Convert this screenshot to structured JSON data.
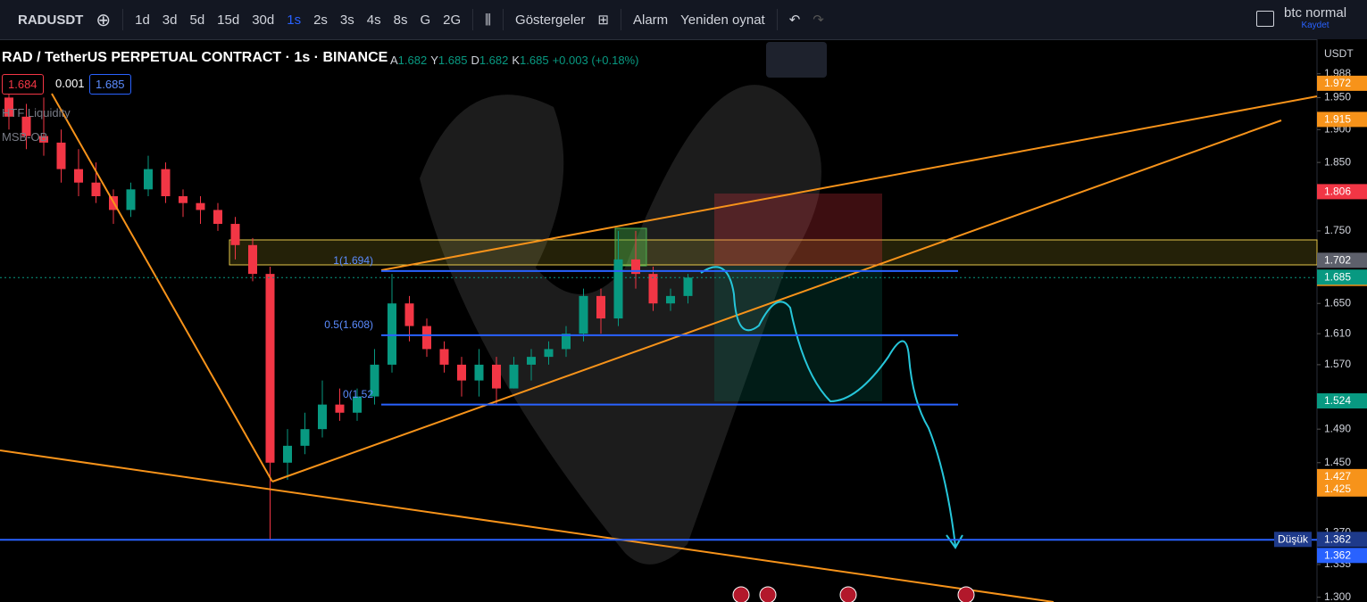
{
  "toolbar": {
    "symbol": "RADUSDT",
    "intervals": [
      "1d",
      "3d",
      "5d",
      "15d",
      "30d",
      "1s",
      "2s",
      "3s",
      "4s",
      "8s",
      "G",
      "2G"
    ],
    "indicators": "Göstergeler",
    "alarm": "Alarm",
    "replay": "Yeniden oynat",
    "layout_name": "btc normal",
    "save": "Kaydet"
  },
  "legend": {
    "title": "RAD / TetherUS PERPETUAL CONTRACT · 1s · BINANCE",
    "ohlc": [
      {
        "key": "A",
        "value": "1.682"
      },
      {
        "key": "Y",
        "value": "1.685"
      },
      {
        "key": "D",
        "value": "1.682"
      },
      {
        "key": "K",
        "value": "1.685"
      }
    ],
    "change": "+0.003 (+0.18%)",
    "bid": "1.684",
    "spread": "0.001",
    "ask": "1.685",
    "indicators": [
      "HTF Liquidity",
      "MSB-OB"
    ]
  },
  "chart": {
    "currency": "USDT",
    "log_scale": true,
    "ylim": [
      1.295,
      2.043
    ],
    "price_ticks": [
      {
        "value": 1.988,
        "label": "1.988"
      },
      {
        "value": 1.95,
        "label": "1.950"
      },
      {
        "value": 1.9,
        "label": "1.900"
      },
      {
        "value": 1.85,
        "label": "1.850"
      },
      {
        "value": 1.75,
        "label": "1.750"
      },
      {
        "value": 1.65,
        "label": "1.650"
      },
      {
        "value": 1.61,
        "label": "1.610"
      },
      {
        "value": 1.57,
        "label": "1.570"
      },
      {
        "value": 1.49,
        "label": "1.490"
      },
      {
        "value": 1.45,
        "label": "1.450"
      },
      {
        "value": 1.37,
        "label": "1.370"
      },
      {
        "value": 1.335,
        "label": "1.335"
      },
      {
        "value": 1.3,
        "label": "1.300"
      }
    ],
    "price_markers": [
      {
        "price": 1.972,
        "color": "#f7931a"
      },
      {
        "price": 1.915,
        "color": "#f7931a"
      },
      {
        "price": 1.806,
        "color": "#f23645"
      },
      {
        "price": 1.702,
        "color": "#5d606b"
      },
      {
        "price": 1.693,
        "color": "#f7931a"
      },
      {
        "price": 1.685,
        "color": "#089981"
      },
      {
        "price": 1.524,
        "color": "#089981"
      },
      {
        "price": 1.427,
        "color": "#f7931a"
      },
      {
        "price": 1.425,
        "color": "#f7931a"
      },
      {
        "price": 1.362,
        "color": "#1e3a8a"
      },
      {
        "price": 1.362,
        "color": "#2962ff"
      }
    ],
    "low_tag": "Düşük",
    "fib_levels": [
      {
        "value": 1.694,
        "label": "1(1.694)"
      },
      {
        "value": 1.608,
        "label": "0.5(1.608)"
      },
      {
        "value": 1.52,
        "label": "0(1.52"
      }
    ],
    "candles": [
      [
        1.95,
        1.97,
        1.9,
        1.92
      ],
      [
        1.92,
        1.94,
        1.87,
        1.89
      ],
      [
        1.89,
        1.95,
        1.86,
        1.88
      ],
      [
        1.88,
        1.9,
        1.82,
        1.84
      ],
      [
        1.84,
        1.87,
        1.8,
        1.82
      ],
      [
        1.82,
        1.85,
        1.79,
        1.8
      ],
      [
        1.8,
        1.81,
        1.76,
        1.78
      ],
      [
        1.78,
        1.82,
        1.77,
        1.81
      ],
      [
        1.81,
        1.86,
        1.8,
        1.84
      ],
      [
        1.84,
        1.85,
        1.79,
        1.8
      ],
      [
        1.8,
        1.81,
        1.77,
        1.79
      ],
      [
        1.79,
        1.8,
        1.76,
        1.78
      ],
      [
        1.78,
        1.79,
        1.75,
        1.76
      ],
      [
        1.76,
        1.77,
        1.71,
        1.73
      ],
      [
        1.73,
        1.74,
        1.68,
        1.69
      ],
      [
        1.69,
        1.7,
        1.362,
        1.45
      ],
      [
        1.45,
        1.49,
        1.43,
        1.47
      ],
      [
        1.47,
        1.51,
        1.46,
        1.49
      ],
      [
        1.49,
        1.55,
        1.48,
        1.52
      ],
      [
        1.52,
        1.54,
        1.5,
        1.51
      ],
      [
        1.51,
        1.54,
        1.5,
        1.53
      ],
      [
        1.53,
        1.59,
        1.52,
        1.57
      ],
      [
        1.57,
        1.69,
        1.56,
        1.65
      ],
      [
        1.65,
        1.66,
        1.6,
        1.62
      ],
      [
        1.62,
        1.63,
        1.58,
        1.59
      ],
      [
        1.59,
        1.6,
        1.56,
        1.57
      ],
      [
        1.57,
        1.58,
        1.53,
        1.55
      ],
      [
        1.55,
        1.59,
        1.53,
        1.57
      ],
      [
        1.57,
        1.58,
        1.52,
        1.54
      ],
      [
        1.54,
        1.58,
        1.54,
        1.57
      ],
      [
        1.57,
        1.59,
        1.55,
        1.58
      ],
      [
        1.58,
        1.6,
        1.57,
        1.59
      ],
      [
        1.59,
        1.62,
        1.58,
        1.61
      ],
      [
        1.61,
        1.67,
        1.6,
        1.66
      ],
      [
        1.66,
        1.67,
        1.61,
        1.63
      ],
      [
        1.63,
        1.75,
        1.62,
        1.71
      ],
      [
        1.71,
        1.75,
        1.67,
        1.69
      ],
      [
        1.69,
        1.7,
        1.64,
        1.65
      ],
      [
        1.65,
        1.67,
        1.64,
        1.66
      ],
      [
        1.66,
        1.69,
        1.65,
        1.685
      ]
    ]
  }
}
